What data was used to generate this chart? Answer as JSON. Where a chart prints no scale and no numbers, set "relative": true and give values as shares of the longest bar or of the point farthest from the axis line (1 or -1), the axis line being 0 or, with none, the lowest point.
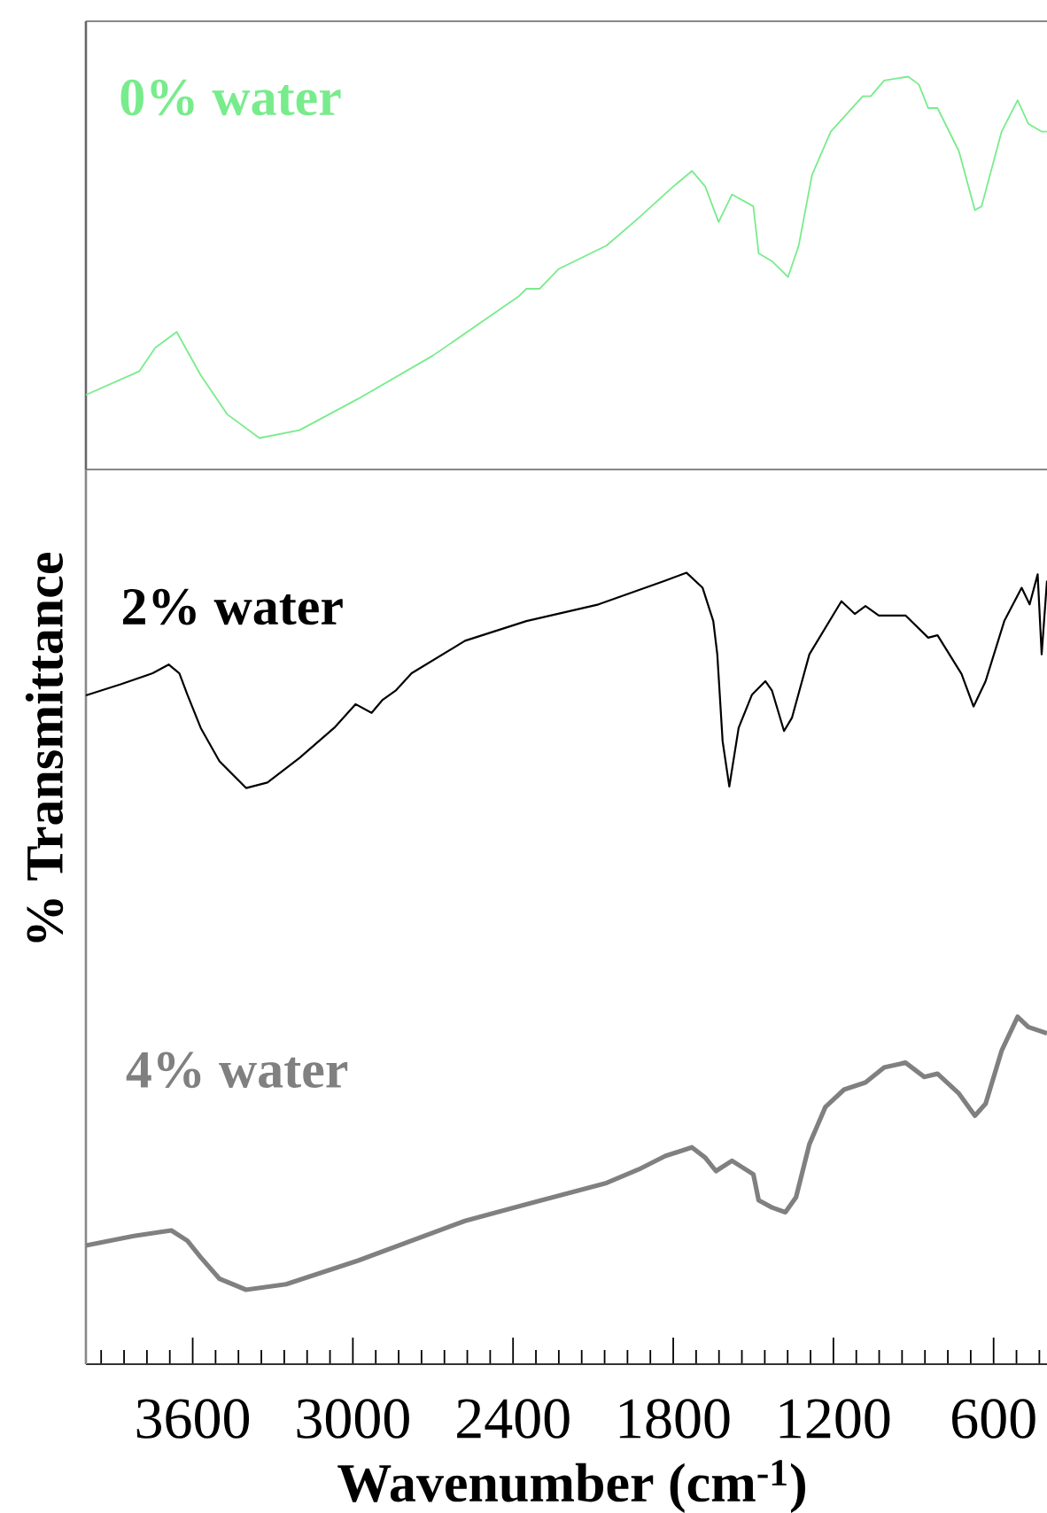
{
  "chart_data": [
    {
      "type": "line",
      "relative": true,
      "xlim": [
        4000,
        400
      ],
      "tick_labels": false,
      "x": [
        4000,
        3800,
        3740,
        3660,
        3570,
        3470,
        3350,
        3200,
        2980,
        2700,
        2380,
        2350,
        2300,
        2230,
        2050,
        1930,
        1800,
        1730,
        1680,
        1630,
        1580,
        1500,
        1480,
        1430,
        1370,
        1330,
        1280,
        1210,
        1090,
        1060,
        1010,
        920,
        880,
        845,
        810,
        730,
        670,
        645,
        570,
        510,
        470,
        420,
        400
      ],
      "series": [
        {
          "name": "0% water",
          "color": "#78ec8c",
          "values": [
            0.19,
            0.25,
            0.31,
            0.35,
            0.24,
            0.14,
            0.08,
            0.1,
            0.18,
            0.29,
            0.44,
            0.46,
            0.46,
            0.51,
            0.57,
            0.64,
            0.72,
            0.76,
            0.72,
            0.63,
            0.7,
            0.67,
            0.55,
            0.53,
            0.49,
            0.57,
            0.75,
            0.86,
            0.95,
            0.95,
            0.99,
            1.0,
            0.98,
            0.92,
            0.92,
            0.81,
            0.66,
            0.67,
            0.86,
            0.94,
            0.88,
            0.86,
            0.86
          ]
        }
      ]
    },
    {
      "type": "line",
      "relative": true,
      "xlim": [
        4000,
        400
      ],
      "tick_labels": "x",
      "xlabel": "Wavenumber (cm$^{-1}$)",
      "ylabel": "% Transmittance",
      "xticks": [
        {
          "value": 3942.9,
          "label": null
        },
        {
          "value": 3857.1,
          "label": null
        },
        {
          "value": 3771.4,
          "label": null
        },
        {
          "value": 3685.7,
          "label": null
        },
        3600,
        {
          "value": 3514.3,
          "label": null
        },
        {
          "value": 3428.6,
          "label": null
        },
        {
          "value": 3342.9,
          "label": null
        },
        {
          "value": 3257.1,
          "label": null
        },
        {
          "value": 3171.4,
          "label": null
        },
        {
          "value": 3085.7,
          "label": null
        },
        3000,
        {
          "value": 2914.3,
          "label": null
        },
        {
          "value": 2828.6,
          "label": null
        },
        {
          "value": 2742.9,
          "label": null
        },
        {
          "value": 2657.1,
          "label": null
        },
        {
          "value": 2571.4,
          "label": null
        },
        {
          "value": 2485.7,
          "label": null
        },
        2400,
        {
          "value": 2314.3,
          "label": null
        },
        {
          "value": 2228.6,
          "label": null
        },
        {
          "value": 2142.9,
          "label": null
        },
        {
          "value": 2057.1,
          "label": null
        },
        {
          "value": 1971.4,
          "label": null
        },
        {
          "value": 1885.7,
          "label": null
        },
        1800,
        {
          "value": 1714.3,
          "label": null
        },
        {
          "value": 1628.6,
          "label": null
        },
        {
          "value": 1542.9,
          "label": null
        },
        {
          "value": 1457.1,
          "label": null
        },
        {
          "value": 1371.4,
          "label": null
        },
        {
          "value": 1285.7,
          "label": null
        },
        1200,
        {
          "value": 1114.3,
          "label": null
        },
        {
          "value": 1028.6,
          "label": null
        },
        {
          "value": 942.9,
          "label": null
        },
        {
          "value": 857.1,
          "label": null
        },
        {
          "value": 771.4,
          "label": null
        },
        {
          "value": 685.7,
          "label": null
        },
        600,
        {
          "value": 514.3,
          "label": null
        },
        {
          "value": 428.6,
          "label": null
        }
      ],
      "series": [
        {
          "name": "2% water",
          "color": "#000000",
          "x": [
            4000,
            3870,
            3750,
            3690,
            3650,
            3620,
            3570,
            3500,
            3400,
            3320,
            3200,
            3070,
            2990,
            2930,
            2890,
            2840,
            2780,
            2580,
            2350,
            2080,
            1830,
            1750,
            1690,
            1650,
            1635,
            1615,
            1590,
            1555,
            1505,
            1455,
            1430,
            1385,
            1355,
            1290,
            1170,
            1120,
            1080,
            1030,
            930,
            845,
            810,
            720,
            675,
            630,
            560,
            495,
            465,
            435,
            420,
            400
          ],
          "values": [
            0.845,
            0.859,
            0.873,
            0.884,
            0.873,
            0.846,
            0.804,
            0.762,
            0.728,
            0.735,
            0.766,
            0.804,
            0.834,
            0.823,
            0.839,
            0.851,
            0.873,
            0.914,
            0.939,
            0.96,
            0.99,
            1.0,
            0.981,
            0.939,
            0.897,
            0.787,
            0.73,
            0.804,
            0.846,
            0.863,
            0.851,
            0.8,
            0.817,
            0.897,
            0.964,
            0.948,
            0.958,
            0.946,
            0.946,
            0.918,
            0.921,
            0.872,
            0.831,
            0.863,
            0.939,
            0.981,
            0.96,
            0.998,
            0.897,
            0.99
          ]
        },
        {
          "name": "4% water",
          "color": "#808080",
          "x": [
            4000,
            3820,
            3720,
            3680,
            3620,
            3570,
            3500,
            3400,
            3250,
            2980,
            2580,
            2350,
            2050,
            1930,
            1830,
            1730,
            1680,
            1640,
            1580,
            1500,
            1480,
            1430,
            1380,
            1340,
            1290,
            1230,
            1160,
            1080,
            1010,
            930,
            860,
            810,
            730,
            670,
            630,
            570,
            510,
            470,
            400
          ],
          "values": [
            0.15,
            0.162,
            0.167,
            0.169,
            0.156,
            0.135,
            0.108,
            0.094,
            0.101,
            0.131,
            0.181,
            0.202,
            0.229,
            0.246,
            0.263,
            0.274,
            0.261,
            0.244,
            0.257,
            0.24,
            0.207,
            0.198,
            0.192,
            0.211,
            0.278,
            0.325,
            0.347,
            0.356,
            0.375,
            0.381,
            0.363,
            0.367,
            0.342,
            0.314,
            0.329,
            0.396,
            0.439,
            0.426,
            0.418
          ]
        }
      ]
    }
  ]
}
